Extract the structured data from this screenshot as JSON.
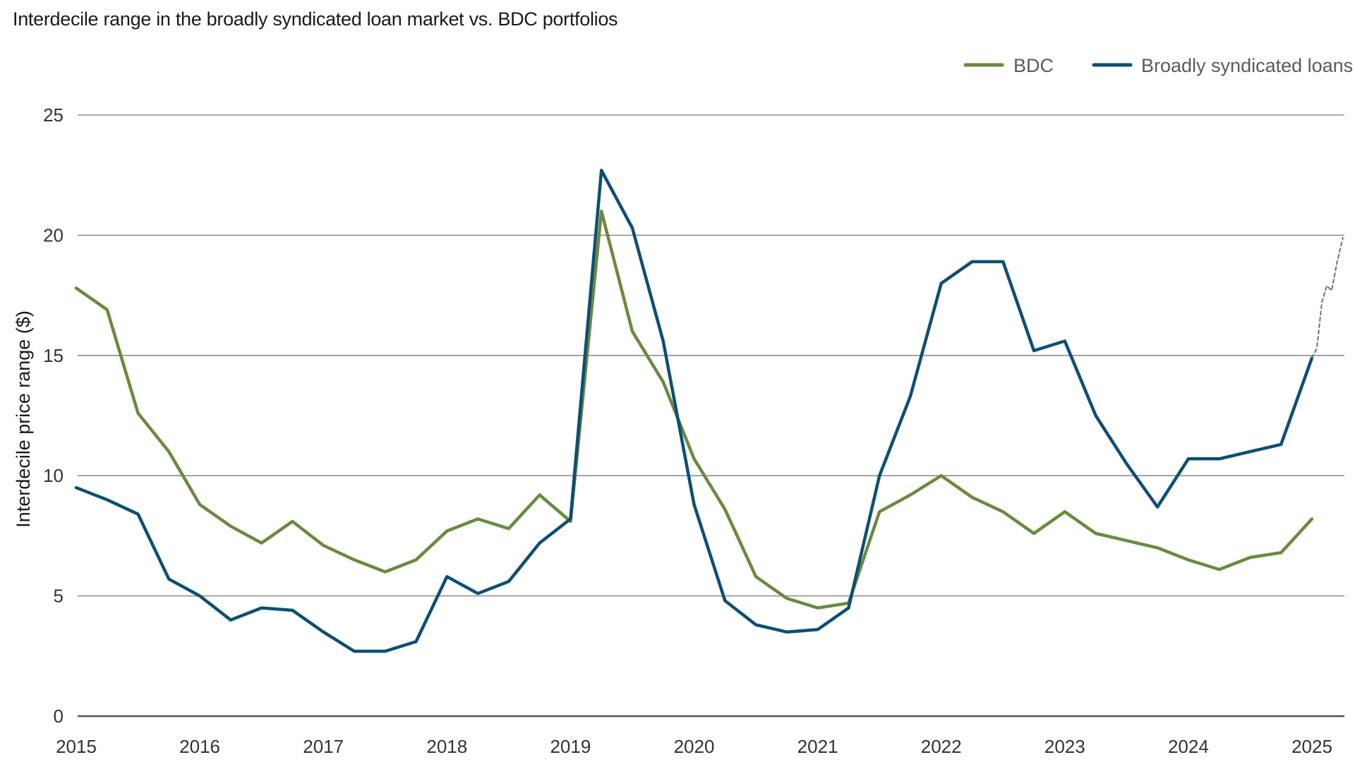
{
  "chart_data": {
    "type": "line",
    "title": "Interdecile range in the broadly syndicated loan market vs. BDC portfolios",
    "xlabel": "",
    "ylabel": "Interdecile price range ($)",
    "xlim": [
      2015.0,
      2025.25
    ],
    "ylim": [
      0,
      25
    ],
    "yticks": [
      0,
      5,
      10,
      15,
      20,
      25
    ],
    "xticks": [
      2015,
      2016,
      2017,
      2018,
      2019,
      2020,
      2021,
      2022,
      2023,
      2024,
      2025
    ],
    "grid": "horizontal",
    "legend": "top-right",
    "colors": {
      "BDC": "#6a8a3e",
      "Broadly syndicated loans": "#0d4f73",
      "extension": "#6b7178",
      "grid": "#7a7a7a",
      "axis": "#555555"
    },
    "series": [
      {
        "name": "BDC",
        "x": [
          2015.0,
          2015.25,
          2015.5,
          2015.75,
          2016.0,
          2016.25,
          2016.5,
          2016.75,
          2017.0,
          2017.25,
          2017.5,
          2017.75,
          2018.0,
          2018.25,
          2018.5,
          2018.75,
          2019.0,
          2019.25,
          2019.5,
          2019.75,
          2020.0,
          2020.25,
          2020.5,
          2020.75,
          2021.0,
          2021.25,
          2021.5,
          2021.75,
          2022.0,
          2022.25,
          2022.5,
          2022.75,
          2023.0,
          2023.25,
          2023.5,
          2023.75,
          2024.0,
          2024.25,
          2024.5,
          2024.75,
          2025.0
        ],
        "values": [
          17.8,
          16.9,
          12.6,
          11.0,
          8.8,
          7.9,
          7.2,
          8.1,
          7.1,
          6.5,
          6.0,
          6.5,
          7.7,
          8.2,
          7.8,
          9.2,
          8.1,
          21.0,
          16.0,
          13.9,
          10.7,
          8.6,
          5.8,
          4.9,
          4.5,
          4.7,
          8.5,
          9.2,
          10.0,
          9.1,
          8.5,
          7.6,
          8.5,
          7.6,
          7.3,
          7.0,
          6.5,
          6.1,
          6.6,
          6.8,
          8.2
        ]
      },
      {
        "name": "Broadly syndicated loans",
        "x": [
          2015.0,
          2015.25,
          2015.5,
          2015.75,
          2016.0,
          2016.25,
          2016.5,
          2016.75,
          2017.0,
          2017.25,
          2017.5,
          2017.75,
          2018.0,
          2018.25,
          2018.5,
          2018.75,
          2019.0,
          2019.25,
          2019.5,
          2019.75,
          2020.0,
          2020.25,
          2020.5,
          2020.75,
          2021.0,
          2021.25,
          2021.5,
          2021.75,
          2022.0,
          2022.25,
          2022.5,
          2022.75,
          2023.0,
          2023.25,
          2023.5,
          2023.75,
          2024.0,
          2024.25,
          2024.5,
          2024.75,
          2025.0
        ],
        "values": [
          9.5,
          9.0,
          8.4,
          5.7,
          5.0,
          4.0,
          4.5,
          4.4,
          3.5,
          2.7,
          2.7,
          3.1,
          5.8,
          5.1,
          5.6,
          7.2,
          8.2,
          22.7,
          20.3,
          15.6,
          8.8,
          4.8,
          3.8,
          3.5,
          3.6,
          4.5,
          10.0,
          13.3,
          18.0,
          18.9,
          18.9,
          15.2,
          15.6,
          12.5,
          10.5,
          8.7,
          10.7,
          10.7,
          11.0,
          11.3,
          14.9
        ]
      },
      {
        "x": [
          2025.0,
          2025.04,
          2025.08,
          2025.12,
          2025.16,
          2025.2,
          2025.25
        ],
        "values": [
          14.9,
          15.3,
          17.2,
          17.9,
          17.7,
          18.8,
          19.9
        ],
        "style": "dashed"
      }
    ]
  }
}
